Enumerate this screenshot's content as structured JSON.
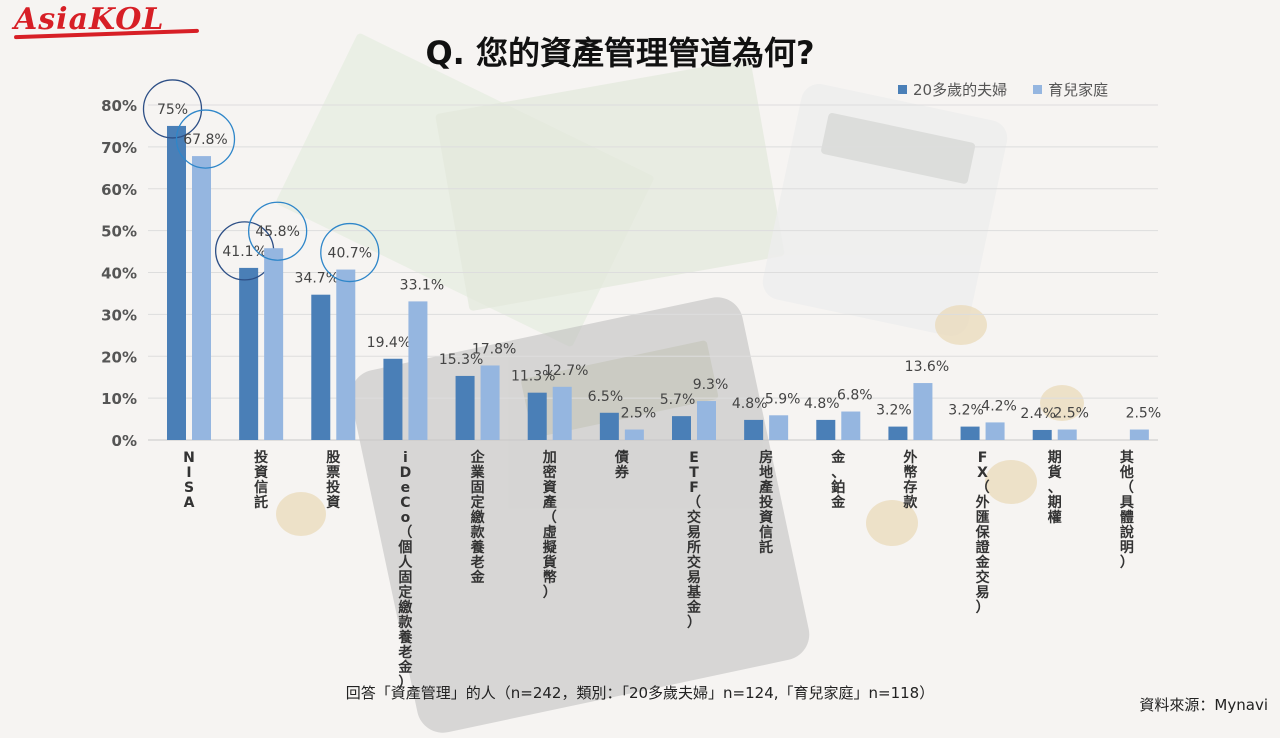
{
  "logo_text": "AsiaKOL",
  "title": "Q. 您的資產管理管道為何?",
  "colors": {
    "series1": "#4a7fb7",
    "series2": "#95b6e0",
    "circle": "#2d4f86",
    "circle_blue": "#2e86c9"
  },
  "chart_data": {
    "type": "bar",
    "title": "Q. 您的資產管理管道為何?",
    "xlabel": "",
    "ylabel": "",
    "ylim": [
      0,
      80
    ],
    "yticks": [
      "0%",
      "10%",
      "20%",
      "30%",
      "40%",
      "50%",
      "60%",
      "70%",
      "80%"
    ],
    "grid": true,
    "legend_position": "top-right",
    "categories": [
      "NISA",
      "投資信託",
      "股票投資",
      "iDeCo（個人固定繳款養老金）",
      "企業固定繳款養老金",
      "加密資產（虛擬貨幣）",
      "債券",
      "ETF（交易所交易基金）",
      "房地產投資信託",
      "金、鉑金",
      "外幣存款",
      "FX（外匯保證金交易）",
      "期貨、期權",
      "其他（具體說明）"
    ],
    "series": [
      {
        "name": "20多歲的夫婦",
        "values": [
          75,
          41.1,
          34.7,
          19.4,
          15.3,
          11.3,
          6.5,
          5.7,
          4.8,
          4.8,
          3.2,
          3.2,
          2.4,
          null
        ],
        "labels": [
          "75%",
          "41.1%",
          "34.7%",
          "19.4%",
          "15.3%",
          "11.3%",
          "6.5%",
          "5.7%",
          "4.8%",
          "4.8%",
          "3.2%",
          "3.2%",
          "2.4%",
          ""
        ]
      },
      {
        "name": "育兒家庭",
        "values": [
          67.8,
          45.8,
          40.7,
          33.1,
          17.8,
          12.7,
          2.5,
          9.3,
          5.9,
          6.8,
          13.6,
          4.2,
          2.5,
          2.5
        ],
        "labels": [
          "67.8%",
          "45.8%",
          "40.7%",
          "33.1%",
          "17.8%",
          "12.7%",
          "2.5%",
          "9.3%",
          "5.9%",
          "6.8%",
          "13.6%",
          "4.2%",
          "2.5%",
          "2.5%"
        ]
      }
    ],
    "highlighted_labels": [
      "75%",
      "67.8%",
      "41.1%",
      "45.8%",
      "40.7%"
    ]
  },
  "footnote": "回答「資產管理」的人（n=242，類別：「20多歲夫婦」n=124,「育兒家庭」n=118）",
  "source": "資料來源：Mynavi"
}
